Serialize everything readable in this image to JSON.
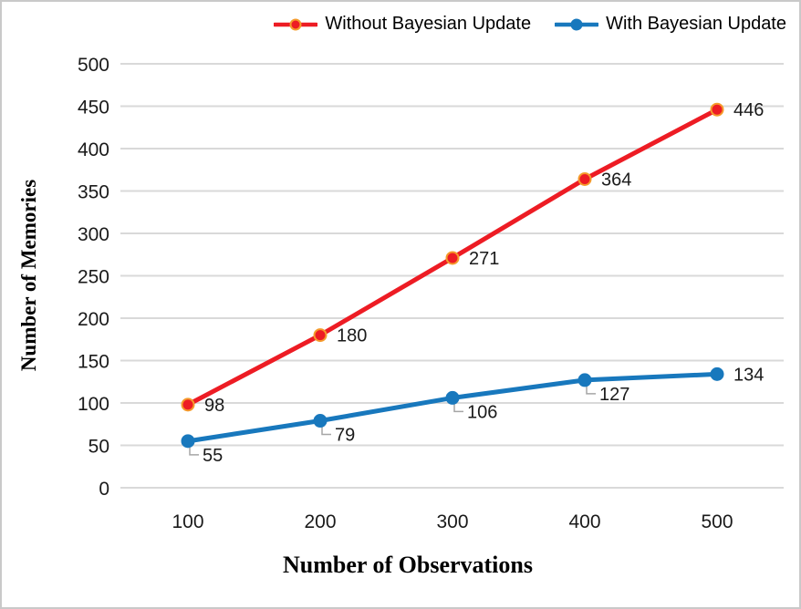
{
  "figure": {
    "background": "#ffffff",
    "border_color": "#c9c9c9",
    "text_color": "#1a1a1a"
  },
  "legend": {
    "position": "top",
    "items": [
      {
        "label": "Without Bayesian Update",
        "color": "#ed1c24",
        "marker_border": "#f59b2c"
      },
      {
        "label": "With Bayesian Update",
        "color": "#1878bd",
        "marker_border": "#1878bd"
      }
    ]
  },
  "chart_data": {
    "type": "line",
    "x": [
      100,
      200,
      300,
      400,
      500
    ],
    "x_ticks": [
      "100",
      "200",
      "300",
      "400",
      "500"
    ],
    "y_ticks": [
      "0",
      "50",
      "100",
      "150",
      "200",
      "250",
      "300",
      "350",
      "400",
      "450",
      "500"
    ],
    "series": [
      {
        "name": "Without Bayesian Update",
        "values": [
          98,
          180,
          271,
          364,
          446
        ],
        "color": "#ed1c24",
        "marker_border": "#f59b2c",
        "label_mode": "right"
      },
      {
        "name": "With Bayesian Update",
        "values": [
          55,
          79,
          106,
          127,
          134
        ],
        "color": "#1878bd",
        "marker_border": "#1878bd",
        "label_mode": "below-right",
        "leader_color": "#a6a6a6"
      }
    ],
    "xlabel": "Number of Observations",
    "ylabel": "Number of Memories",
    "ylim": [
      0,
      500
    ],
    "ytick_step": 50,
    "grid": true,
    "gridline_color": "#d9d9d9",
    "legend_position": "top",
    "data_labels": true
  }
}
